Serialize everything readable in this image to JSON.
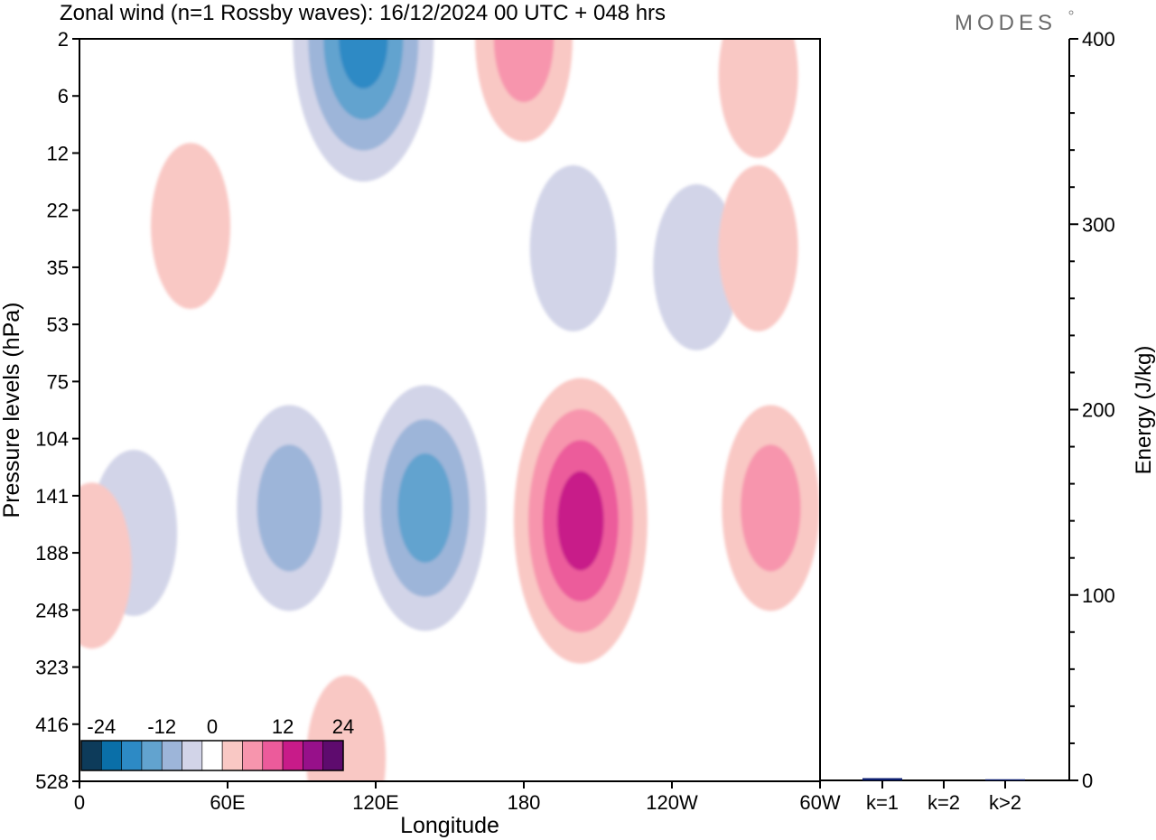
{
  "title": "Zonal wind (n=1 Rossby waves):  16/12/2024  00 UTC  + 048 hrs",
  "logo": "MODES",
  "chart_data": [
    {
      "type": "heatmap",
      "description_kind": "filled contour (longitude-pressure section)",
      "xlabel": "Longitude",
      "ylabel": "Pressure levels (hPa)",
      "x_range_deg_east": [
        0,
        300
      ],
      "x_ticks": [
        {
          "label": "0",
          "lon": 0
        },
        {
          "label": "60E",
          "lon": 60
        },
        {
          "label": "120E",
          "lon": 120
        },
        {
          "label": "180",
          "lon": 180
        },
        {
          "label": "120W",
          "lon": 240
        },
        {
          "label": "60W",
          "lon": 300
        }
      ],
      "y_levels_hpa": [
        2,
        6,
        12,
        22,
        35,
        53,
        75,
        104,
        141,
        188,
        248,
        323,
        416,
        528
      ],
      "y_scale": "nonlinear (levels evenly spaced)",
      "colorbar": {
        "labels": [
          "-24",
          "-12",
          "0",
          "12",
          "24"
        ],
        "bounds": [
          -30,
          -25,
          -20,
          -15,
          -10,
          -5,
          5,
          10,
          15,
          20,
          25,
          30
        ],
        "colors": [
          "#0d3b5a",
          "#0a6fa8",
          "#2d8ac5",
          "#62a3cf",
          "#9db5d9",
          "#d2d4e8",
          "#ffffff",
          "#f9c8c4",
          "#f795ad",
          "#ec5b9b",
          "#c81b89",
          "#97108a",
          "#5e0b6e"
        ]
      },
      "features": [
        {
          "sign": "negative",
          "lon": 115,
          "level_hpa": 2,
          "peak": -20
        },
        {
          "sign": "negative",
          "lon": 200,
          "level_hpa": 30,
          "peak": -8
        },
        {
          "sign": "negative",
          "lon": 22,
          "level_hpa": 170,
          "peak": -8
        },
        {
          "sign": "negative",
          "lon": 85,
          "level_hpa": 150,
          "peak": -12
        },
        {
          "sign": "negative",
          "lon": 140,
          "level_hpa": 150,
          "peak": -15
        },
        {
          "sign": "negative",
          "lon": 250,
          "level_hpa": 35,
          "peak": -5
        },
        {
          "sign": "positive",
          "lon": 180,
          "level_hpa": 2,
          "peak": 12
        },
        {
          "sign": "positive",
          "lon": 45,
          "level_hpa": 25,
          "peak": 6
        },
        {
          "sign": "positive",
          "lon": 275,
          "level_hpa": 4,
          "peak": 6
        },
        {
          "sign": "positive",
          "lon": 275,
          "level_hpa": 30,
          "peak": 6
        },
        {
          "sign": "positive",
          "lon": 203,
          "level_hpa": 160,
          "peak": 22
        },
        {
          "sign": "positive",
          "lon": 280,
          "level_hpa": 150,
          "peak": 12
        },
        {
          "sign": "positive",
          "lon": 5,
          "level_hpa": 200,
          "peak": 8
        },
        {
          "sign": "positive",
          "lon": 108,
          "level_hpa": 480,
          "peak": 5
        }
      ]
    },
    {
      "type": "bar",
      "categories": [
        "k=1",
        "k=2",
        "k>2"
      ],
      "values": [
        1.2,
        0,
        0.6
      ],
      "ylabel": "Energy (J/kg)",
      "ylim": [
        0,
        400
      ],
      "y_ticks": [
        "0",
        "100",
        "200",
        "300",
        "400"
      ],
      "bar_color": "#0b1d6e"
    }
  ]
}
